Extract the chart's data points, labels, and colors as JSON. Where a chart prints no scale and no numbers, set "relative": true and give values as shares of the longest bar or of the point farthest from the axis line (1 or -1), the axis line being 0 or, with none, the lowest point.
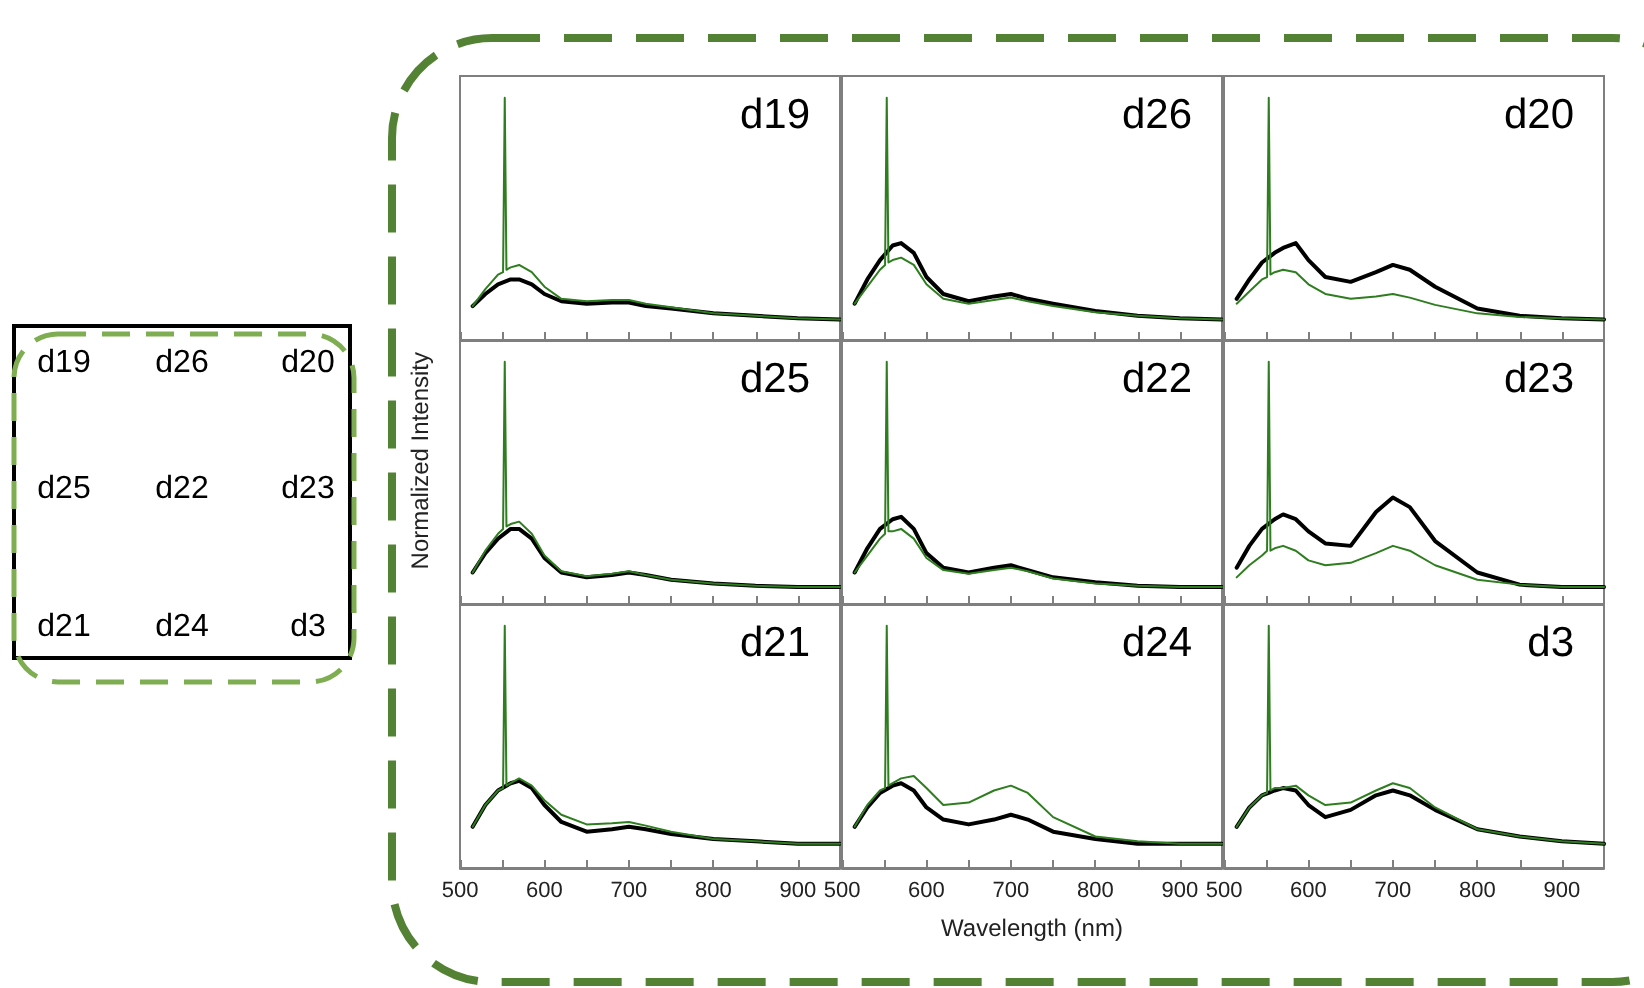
{
  "chart_data": [
    {
      "type": "line",
      "title": "d19",
      "relative": true,
      "marker": "none",
      "xlim": [
        500,
        950
      ],
      "xticks": [
        500,
        {
          "value": 550,
          "label": null
        },
        600,
        {
          "value": 650,
          "label": null
        },
        700,
        {
          "value": 750,
          "label": null
        },
        800,
        {
          "value": 850,
          "label": null
        },
        900
      ],
      "tick_labels": false,
      "series": [
        {
          "color": "#000000",
          "x": [
            515,
            530,
            545,
            560,
            570,
            585,
            600,
            620,
            650,
            680,
            700,
            720,
            750,
            800,
            850,
            900,
            950
          ],
          "values": [
            0.14,
            0.19,
            0.23,
            0.25,
            0.25,
            0.23,
            0.19,
            0.16,
            0.15,
            0.155,
            0.155,
            0.14,
            0.13,
            0.11,
            0.1,
            0.09,
            0.085
          ]
        },
        {
          "color": "#2e7d1e",
          "x": [
            515,
            530,
            545,
            551,
            553,
            555,
            560,
            570,
            585,
            600,
            620,
            650,
            680,
            700,
            720,
            750,
            800,
            850,
            900,
            950
          ],
          "values": [
            0.14,
            0.21,
            0.27,
            0.28,
            1,
            0.29,
            0.3,
            0.31,
            0.28,
            0.22,
            0.17,
            0.16,
            0.165,
            0.165,
            0.15,
            0.135,
            0.11,
            0.1,
            0.09,
            0.085
          ]
        }
      ]
    },
    {
      "type": "line",
      "title": "d26",
      "relative": true,
      "marker": "none",
      "xlim": [
        500,
        950
      ],
      "xticks": [
        500,
        {
          "value": 550,
          "label": null
        },
        600,
        {
          "value": 650,
          "label": null
        },
        700,
        {
          "value": 750,
          "label": null
        },
        800,
        {
          "value": 850,
          "label": null
        },
        900
      ],
      "tick_labels": false,
      "series": [
        {
          "color": "#000000",
          "x": [
            515,
            530,
            545,
            560,
            570,
            585,
            600,
            620,
            650,
            680,
            700,
            720,
            750,
            800,
            850,
            900,
            950
          ],
          "values": [
            0.15,
            0.25,
            0.33,
            0.39,
            0.4,
            0.36,
            0.26,
            0.19,
            0.16,
            0.18,
            0.19,
            0.17,
            0.15,
            0.12,
            0.1,
            0.09,
            0.085
          ]
        },
        {
          "color": "#2e7d1e",
          "x": [
            515,
            530,
            545,
            551,
            553,
            555,
            560,
            570,
            585,
            600,
            620,
            650,
            680,
            700,
            720,
            750,
            800,
            850,
            900,
            950
          ],
          "values": [
            0.15,
            0.22,
            0.29,
            0.31,
            1,
            0.32,
            0.33,
            0.34,
            0.31,
            0.23,
            0.17,
            0.15,
            0.165,
            0.175,
            0.16,
            0.14,
            0.115,
            0.1,
            0.09,
            0.085
          ]
        }
      ]
    },
    {
      "type": "line",
      "title": "d20",
      "relative": true,
      "marker": "none",
      "xlim": [
        500,
        950
      ],
      "xticks": [
        500,
        {
          "value": 550,
          "label": null
        },
        600,
        {
          "value": 650,
          "label": null
        },
        700,
        {
          "value": 750,
          "label": null
        },
        800,
        {
          "value": 850,
          "label": null
        },
        900
      ],
      "tick_labels": false,
      "series": [
        {
          "color": "#000000",
          "x": [
            515,
            530,
            545,
            560,
            570,
            585,
            600,
            620,
            650,
            680,
            700,
            720,
            750,
            800,
            850,
            900,
            950
          ],
          "values": [
            0.17,
            0.25,
            0.32,
            0.36,
            0.38,
            0.4,
            0.33,
            0.26,
            0.24,
            0.28,
            0.31,
            0.29,
            0.22,
            0.13,
            0.1,
            0.09,
            0.085
          ]
        },
        {
          "color": "#2e7d1e",
          "x": [
            515,
            530,
            545,
            551,
            553,
            555,
            560,
            570,
            585,
            600,
            620,
            650,
            680,
            700,
            720,
            750,
            800,
            850,
            900,
            950
          ],
          "values": [
            0.15,
            0.2,
            0.25,
            0.26,
            1,
            0.27,
            0.28,
            0.29,
            0.28,
            0.23,
            0.19,
            0.17,
            0.18,
            0.19,
            0.175,
            0.145,
            0.11,
            0.095,
            0.09,
            0.085
          ]
        }
      ]
    },
    {
      "type": "line",
      "title": "d25",
      "ylabel": "Normalized Intensity",
      "relative": true,
      "marker": "none",
      "xlim": [
        500,
        950
      ],
      "xticks": [
        500,
        {
          "value": 550,
          "label": null
        },
        600,
        {
          "value": 650,
          "label": null
        },
        700,
        {
          "value": 750,
          "label": null
        },
        800,
        {
          "value": 850,
          "label": null
        },
        900
      ],
      "tick_labels": false,
      "series": [
        {
          "color": "#000000",
          "x": [
            515,
            530,
            545,
            560,
            570,
            585,
            600,
            620,
            650,
            680,
            700,
            720,
            750,
            800,
            850,
            900,
            950
          ],
          "values": [
            0.13,
            0.21,
            0.27,
            0.31,
            0.31,
            0.27,
            0.19,
            0.13,
            0.11,
            0.12,
            0.13,
            0.12,
            0.1,
            0.085,
            0.075,
            0.07,
            0.07
          ]
        },
        {
          "color": "#2e7d1e",
          "x": [
            515,
            530,
            545,
            551,
            553,
            555,
            560,
            570,
            585,
            600,
            620,
            650,
            680,
            700,
            720,
            750,
            800,
            850,
            900,
            950
          ],
          "values": [
            0.13,
            0.22,
            0.29,
            0.31,
            1,
            0.32,
            0.33,
            0.34,
            0.29,
            0.2,
            0.135,
            0.115,
            0.125,
            0.135,
            0.12,
            0.1,
            0.085,
            0.075,
            0.07,
            0.07
          ]
        }
      ]
    },
    {
      "type": "line",
      "title": "d22",
      "relative": true,
      "marker": "none",
      "xlim": [
        500,
        950
      ],
      "xticks": [
        500,
        {
          "value": 550,
          "label": null
        },
        600,
        {
          "value": 650,
          "label": null
        },
        700,
        {
          "value": 750,
          "label": null
        },
        800,
        {
          "value": 850,
          "label": null
        },
        900
      ],
      "tick_labels": false,
      "series": [
        {
          "color": "#000000",
          "x": [
            515,
            530,
            545,
            560,
            570,
            585,
            600,
            620,
            650,
            680,
            700,
            720,
            750,
            800,
            850,
            900,
            950
          ],
          "values": [
            0.13,
            0.23,
            0.31,
            0.35,
            0.36,
            0.31,
            0.21,
            0.15,
            0.13,
            0.15,
            0.16,
            0.14,
            0.11,
            0.09,
            0.075,
            0.07,
            0.07
          ]
        },
        {
          "color": "#2e7d1e",
          "x": [
            515,
            530,
            545,
            551,
            553,
            555,
            560,
            570,
            585,
            600,
            620,
            650,
            680,
            700,
            720,
            750,
            800,
            850,
            900,
            950
          ],
          "values": [
            0.13,
            0.2,
            0.27,
            0.29,
            1,
            0.3,
            0.3,
            0.31,
            0.27,
            0.19,
            0.14,
            0.125,
            0.14,
            0.15,
            0.135,
            0.105,
            0.085,
            0.075,
            0.07,
            0.07
          ]
        }
      ]
    },
    {
      "type": "line",
      "title": "d23",
      "relative": true,
      "marker": "none",
      "xlim": [
        500,
        950
      ],
      "xticks": [
        500,
        {
          "value": 550,
          "label": null
        },
        600,
        {
          "value": 650,
          "label": null
        },
        700,
        {
          "value": 750,
          "label": null
        },
        800,
        {
          "value": 850,
          "label": null
        },
        900
      ],
      "tick_labels": false,
      "series": [
        {
          "color": "#000000",
          "x": [
            515,
            530,
            545,
            560,
            570,
            585,
            600,
            620,
            650,
            680,
            700,
            720,
            750,
            800,
            850,
            900,
            950
          ],
          "values": [
            0.15,
            0.24,
            0.31,
            0.35,
            0.37,
            0.35,
            0.3,
            0.25,
            0.24,
            0.38,
            0.44,
            0.4,
            0.26,
            0.13,
            0.08,
            0.07,
            0.07
          ]
        },
        {
          "color": "#2e7d1e",
          "x": [
            515,
            530,
            545,
            551,
            553,
            555,
            560,
            570,
            585,
            600,
            620,
            650,
            680,
            700,
            720,
            750,
            800,
            850,
            900,
            950
          ],
          "values": [
            0.11,
            0.16,
            0.2,
            0.22,
            1,
            0.22,
            0.23,
            0.24,
            0.22,
            0.18,
            0.16,
            0.17,
            0.21,
            0.24,
            0.22,
            0.16,
            0.1,
            0.08,
            0.07,
            0.07
          ]
        }
      ]
    },
    {
      "type": "line",
      "title": "d21",
      "relative": true,
      "marker": "none",
      "xlim": [
        500,
        950
      ],
      "xticks": [
        500,
        {
          "value": 550,
          "label": null
        },
        600,
        {
          "value": 650,
          "label": null
        },
        700,
        {
          "value": 750,
          "label": null
        },
        800,
        {
          "value": 850,
          "label": null
        },
        900
      ],
      "tick_labels": "x",
      "series": [
        {
          "color": "#000000",
          "x": [
            515,
            530,
            545,
            560,
            570,
            585,
            600,
            620,
            650,
            680,
            700,
            720,
            750,
            800,
            850,
            900,
            950
          ],
          "values": [
            0.17,
            0.26,
            0.32,
            0.35,
            0.36,
            0.33,
            0.26,
            0.19,
            0.15,
            0.16,
            0.17,
            0.16,
            0.14,
            0.12,
            0.11,
            0.1,
            0.1
          ]
        },
        {
          "color": "#2e7d1e",
          "x": [
            515,
            530,
            545,
            551,
            553,
            555,
            560,
            570,
            585,
            600,
            620,
            650,
            680,
            700,
            720,
            750,
            800,
            850,
            900,
            950
          ],
          "values": [
            0.17,
            0.26,
            0.32,
            0.33,
            1,
            0.34,
            0.35,
            0.37,
            0.34,
            0.28,
            0.22,
            0.18,
            0.185,
            0.19,
            0.175,
            0.15,
            0.12,
            0.11,
            0.1,
            0.1
          ]
        }
      ]
    },
    {
      "type": "line",
      "title": "d24",
      "xlabel": "Wavelength (nm)",
      "relative": true,
      "marker": "none",
      "xlim": [
        500,
        950
      ],
      "xticks": [
        500,
        {
          "value": 550,
          "label": null
        },
        600,
        {
          "value": 650,
          "label": null
        },
        700,
        {
          "value": 750,
          "label": null
        },
        800,
        {
          "value": 850,
          "label": null
        },
        900
      ],
      "tick_labels": "x",
      "series": [
        {
          "color": "#000000",
          "x": [
            515,
            530,
            545,
            560,
            570,
            585,
            600,
            620,
            650,
            680,
            700,
            720,
            750,
            800,
            850,
            900,
            950
          ],
          "values": [
            0.17,
            0.25,
            0.31,
            0.34,
            0.35,
            0.32,
            0.25,
            0.2,
            0.18,
            0.2,
            0.22,
            0.2,
            0.15,
            0.12,
            0.1,
            0.1,
            0.1
          ]
        },
        {
          "color": "#2e7d1e",
          "x": [
            515,
            530,
            545,
            551,
            553,
            555,
            560,
            570,
            585,
            600,
            620,
            650,
            680,
            700,
            720,
            750,
            800,
            850,
            900,
            950
          ],
          "values": [
            0.17,
            0.26,
            0.32,
            0.33,
            1,
            0.34,
            0.35,
            0.37,
            0.38,
            0.33,
            0.26,
            0.27,
            0.32,
            0.34,
            0.31,
            0.21,
            0.13,
            0.11,
            0.1,
            0.1
          ]
        }
      ]
    },
    {
      "type": "line",
      "title": "d3",
      "relative": true,
      "marker": "none",
      "xlim": [
        500,
        950
      ],
      "xticks": [
        500,
        {
          "value": 550,
          "label": null
        },
        600,
        {
          "value": 650,
          "label": null
        },
        700,
        {
          "value": 750,
          "label": null
        },
        800,
        {
          "value": 850,
          "label": null
        },
        900
      ],
      "tick_labels": "x",
      "series": [
        {
          "color": "#000000",
          "x": [
            515,
            530,
            545,
            560,
            570,
            585,
            600,
            620,
            650,
            680,
            700,
            720,
            750,
            800,
            850,
            900,
            950
          ],
          "values": [
            0.17,
            0.25,
            0.3,
            0.32,
            0.33,
            0.32,
            0.26,
            0.21,
            0.24,
            0.3,
            0.32,
            0.3,
            0.24,
            0.16,
            0.13,
            0.11,
            0.1
          ]
        },
        {
          "color": "#2e7d1e",
          "x": [
            515,
            530,
            545,
            551,
            553,
            555,
            560,
            570,
            585,
            600,
            620,
            650,
            680,
            700,
            720,
            750,
            800,
            850,
            900,
            950
          ],
          "values": [
            0.17,
            0.25,
            0.3,
            0.31,
            1,
            0.32,
            0.33,
            0.33,
            0.34,
            0.3,
            0.26,
            0.27,
            0.32,
            0.35,
            0.33,
            0.25,
            0.16,
            0.13,
            0.11,
            0.1
          ]
        }
      ]
    },
    {
      "type": "other",
      "annotations": [
        "d19",
        "d26",
        "d20",
        "d25",
        "d22",
        "d23",
        "d21",
        "d24",
        "d3"
      ]
    }
  ]
}
